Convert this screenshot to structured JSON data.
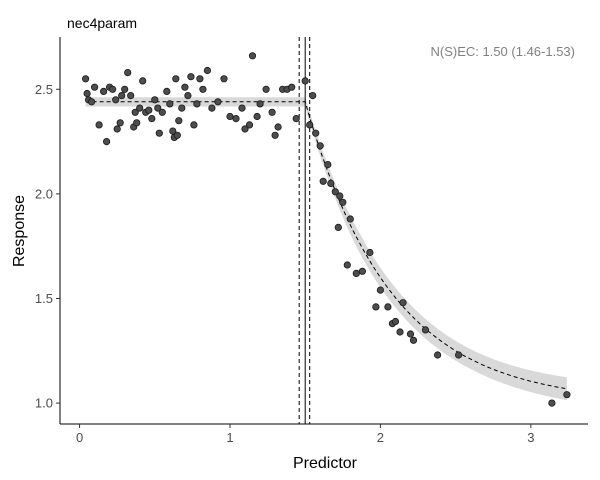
{
  "chart_data": {
    "type": "scatter",
    "title": "nec4param",
    "xlabel": "Predictor",
    "ylabel": "Response",
    "xlim": [
      -0.13,
      3.38
    ],
    "ylim": [
      0.9,
      2.75
    ],
    "x_ticks": [
      0,
      1,
      2,
      3
    ],
    "y_ticks": [
      1.0,
      1.5,
      2.0,
      2.5
    ],
    "x_tick_labels": [
      "0",
      "1",
      "2",
      "3"
    ],
    "y_tick_labels": [
      "1.0",
      "1.5",
      "2.0",
      "2.5"
    ],
    "annotation": "N(S)EC: 1.50 (1.46-1.53)",
    "nec": {
      "estimate": 1.5,
      "lower": 1.46,
      "upper": 1.53
    },
    "colors": {
      "point_fill": "#4d4d4d",
      "point_stroke": "#1a1a1a",
      "band": "#d9d9d9",
      "line": "#000000"
    },
    "grid": false,
    "points": [
      [
        0.04,
        2.55
      ],
      [
        0.05,
        2.48
      ],
      [
        0.06,
        2.45
      ],
      [
        0.08,
        2.44
      ],
      [
        0.1,
        2.51
      ],
      [
        0.13,
        2.33
      ],
      [
        0.16,
        2.49
      ],
      [
        0.18,
        2.25
      ],
      [
        0.2,
        2.51
      ],
      [
        0.22,
        2.5
      ],
      [
        0.24,
        2.45
      ],
      [
        0.25,
        2.31
      ],
      [
        0.27,
        2.34
      ],
      [
        0.28,
        2.47
      ],
      [
        0.3,
        2.5
      ],
      [
        0.32,
        2.58
      ],
      [
        0.34,
        2.47
      ],
      [
        0.36,
        2.32
      ],
      [
        0.37,
        2.39
      ],
      [
        0.38,
        2.34
      ],
      [
        0.4,
        2.41
      ],
      [
        0.42,
        2.54
      ],
      [
        0.44,
        2.39
      ],
      [
        0.46,
        2.4
      ],
      [
        0.48,
        2.36
      ],
      [
        0.5,
        2.45
      ],
      [
        0.52,
        2.41
      ],
      [
        0.53,
        2.29
      ],
      [
        0.55,
        2.39
      ],
      [
        0.58,
        2.49
      ],
      [
        0.6,
        2.43
      ],
      [
        0.62,
        2.3
      ],
      [
        0.63,
        2.27
      ],
      [
        0.64,
        2.55
      ],
      [
        0.65,
        2.28
      ],
      [
        0.66,
        2.35
      ],
      [
        0.68,
        2.41
      ],
      [
        0.7,
        2.51
      ],
      [
        0.72,
        2.47
      ],
      [
        0.74,
        2.56
      ],
      [
        0.76,
        2.33
      ],
      [
        0.78,
        2.43
      ],
      [
        0.8,
        2.55
      ],
      [
        0.82,
        2.5
      ],
      [
        0.85,
        2.59
      ],
      [
        0.88,
        2.41
      ],
      [
        0.92,
        2.44
      ],
      [
        0.96,
        2.55
      ],
      [
        1.0,
        2.37
      ],
      [
        1.04,
        2.36
      ],
      [
        1.08,
        2.41
      ],
      [
        1.1,
        2.31
      ],
      [
        1.13,
        2.33
      ],
      [
        1.15,
        2.66
      ],
      [
        1.18,
        2.37
      ],
      [
        1.2,
        2.43
      ],
      [
        1.24,
        2.5
      ],
      [
        1.28,
        2.39
      ],
      [
        1.3,
        2.28
      ],
      [
        1.32,
        2.32
      ],
      [
        1.35,
        2.5
      ],
      [
        1.38,
        2.5
      ],
      [
        1.41,
        2.51
      ],
      [
        1.44,
        2.36
      ],
      [
        1.5,
        2.54
      ],
      [
        1.53,
        2.33
      ],
      [
        1.55,
        2.47
      ],
      [
        1.57,
        2.29
      ],
      [
        1.6,
        2.23
      ],
      [
        1.62,
        2.06
      ],
      [
        1.65,
        2.14
      ],
      [
        1.67,
        2.05
      ],
      [
        1.7,
        2.01
      ],
      [
        1.72,
        1.84
      ],
      [
        1.73,
        1.99
      ],
      [
        1.75,
        1.96
      ],
      [
        1.78,
        1.66
      ],
      [
        1.8,
        1.88
      ],
      [
        1.84,
        1.62
      ],
      [
        1.88,
        1.63
      ],
      [
        1.93,
        1.72
      ],
      [
        1.97,
        1.46
      ],
      [
        2.0,
        1.54
      ],
      [
        2.05,
        1.46
      ],
      [
        2.08,
        1.38
      ],
      [
        2.1,
        1.39
      ],
      [
        2.13,
        1.34
      ],
      [
        2.15,
        1.48
      ],
      [
        2.2,
        1.33
      ],
      [
        2.22,
        1.3
      ],
      [
        2.3,
        1.35
      ],
      [
        2.38,
        1.23
      ],
      [
        2.52,
        1.23
      ],
      [
        3.14,
        1.0
      ],
      [
        3.24,
        1.04
      ]
    ]
  }
}
